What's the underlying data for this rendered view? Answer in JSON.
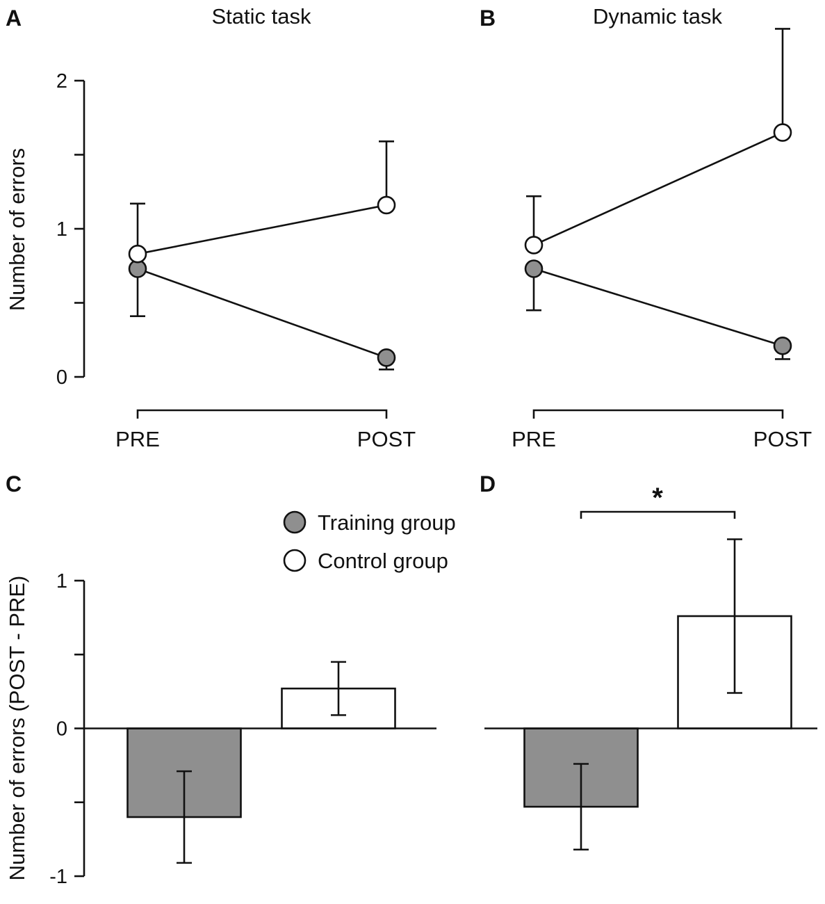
{
  "figure": {
    "ylabel_top": "Number of errors",
    "ylabel_bottom": "Number of errors (POST - PRE)",
    "legend": [
      {
        "label": "Training group",
        "color": "#8f8f8f"
      },
      {
        "label": "Control group",
        "color": "#ffffff"
      }
    ],
    "significance_marker": "*"
  },
  "chart_data": [
    {
      "panel": "A",
      "type": "line",
      "title": "Static task",
      "categories": [
        "PRE",
        "POST"
      ],
      "ylabel": "Number of errors",
      "ylim": [
        0,
        2
      ],
      "yticks": [
        0,
        0.5,
        1,
        1.5,
        2
      ],
      "ytick_labels": [
        "0",
        "",
        "1",
        "",
        "2"
      ],
      "series": [
        {
          "name": "Training group",
          "color": "#8f8f8f",
          "values": [
            0.73,
            0.13
          ],
          "err_low": [
            0.41,
            0.05
          ],
          "err_high": [
            0.73,
            0.13
          ]
        },
        {
          "name": "Control group",
          "color": "#ffffff",
          "values": [
            0.83,
            1.16
          ],
          "err_low": [
            0.83,
            1.16
          ],
          "err_high": [
            1.17,
            1.59
          ]
        }
      ]
    },
    {
      "panel": "B",
      "type": "line",
      "title": "Dynamic task",
      "categories": [
        "PRE",
        "POST"
      ],
      "ylim": [
        0,
        2
      ],
      "yticks": [
        0,
        0.5,
        1,
        1.5,
        2
      ],
      "series": [
        {
          "name": "Training group",
          "color": "#8f8f8f",
          "values": [
            0.73,
            0.21
          ],
          "err_low": [
            0.45,
            0.12
          ],
          "err_high": [
            0.73,
            0.21
          ]
        },
        {
          "name": "Control group",
          "color": "#ffffff",
          "values": [
            0.89,
            1.65
          ],
          "err_low": [
            0.89,
            1.65
          ],
          "err_high": [
            1.22,
            2.35
          ]
        }
      ]
    },
    {
      "panel": "C",
      "type": "bar",
      "title": "",
      "categories": [
        "Training group",
        "Control group"
      ],
      "ylabel": "Number of errors (POST - PRE)",
      "ylim": [
        -1,
        1
      ],
      "yticks": [
        -1,
        -0.5,
        0,
        0.5,
        1
      ],
      "ytick_labels": [
        "-1",
        "",
        "0",
        "",
        "1"
      ],
      "values": [
        -0.6,
        0.27
      ],
      "err_low": [
        -0.91,
        0.09
      ],
      "err_high": [
        -0.29,
        0.45
      ],
      "colors": [
        "#8f8f8f",
        "#ffffff"
      ]
    },
    {
      "panel": "D",
      "type": "bar",
      "title": "",
      "categories": [
        "Training group",
        "Control group"
      ],
      "ylim": [
        -1,
        1
      ],
      "values": [
        -0.53,
        0.76
      ],
      "err_low": [
        -0.82,
        0.24
      ],
      "err_high": [
        -0.24,
        1.28
      ],
      "colors": [
        "#8f8f8f",
        "#ffffff"
      ],
      "significance": "*"
    }
  ]
}
